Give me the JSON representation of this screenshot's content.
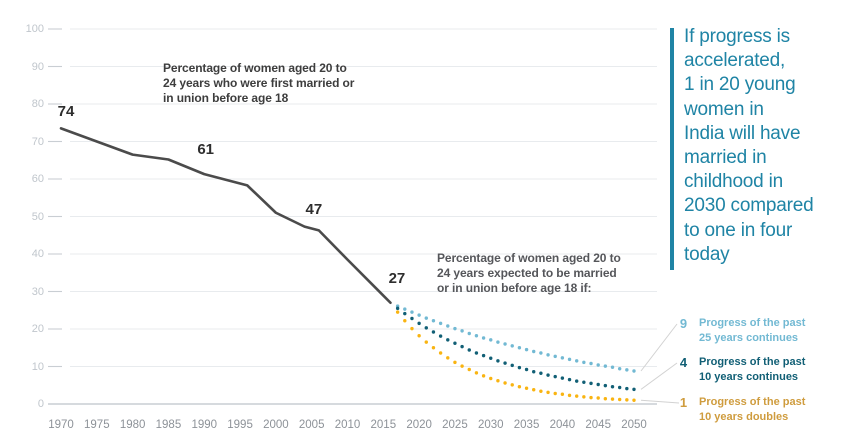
{
  "chart_data": {
    "type": "line",
    "xlim": [
      1970,
      2050
    ],
    "ylim": [
      0,
      100
    ],
    "grid": true,
    "x_ticks": [
      1970,
      1975,
      1980,
      1985,
      1990,
      1995,
      2000,
      2005,
      2010,
      2015,
      2020,
      2025,
      2030,
      2035,
      2040,
      2045,
      2050
    ],
    "y_ticks": [
      0,
      10,
      20,
      30,
      40,
      50,
      60,
      70,
      80,
      90,
      100
    ],
    "historical_series": {
      "name": "Percentage of women aged 20 to 24 years who were first married or in union before age 18",
      "style": "solid",
      "color": "#4b4b4b",
      "points": [
        [
          1970,
          73.5
        ],
        [
          1975,
          70
        ],
        [
          1980,
          66.5
        ],
        [
          1985,
          65.2
        ],
        [
          1990,
          61.3
        ],
        [
          1996,
          58.3
        ],
        [
          2000,
          51
        ],
        [
          2004,
          47.3
        ],
        [
          2006,
          46.3
        ],
        [
          2010,
          38.5
        ],
        [
          2016,
          27
        ]
      ],
      "point_labels": [
        {
          "text": "74",
          "year": 1970.7,
          "anchor_value": 75.7
        },
        {
          "text": "61",
          "year": 1990.2,
          "anchor_value": 65.6
        },
        {
          "text": "47",
          "year": 2005.3,
          "anchor_value": 49.6
        },
        {
          "text": "27",
          "year": 2016.9,
          "anchor_value": 31.2
        }
      ]
    },
    "projections": {
      "name": "Percentage of women aged 20 to 24 years expected to be married or in union before age 18 if:",
      "style": "dotted",
      "start_year": 2017,
      "end_year": 2050,
      "series": [
        {
          "name": "Progress of the past 25 years continues",
          "end_label": "9",
          "color": "#72b9d3",
          "values": [
            26.1,
            25.3,
            24.5,
            23.7,
            22.9,
            22.2,
            21.5,
            20.8,
            20.1,
            19.5,
            18.8,
            18.2,
            17.6,
            17.1,
            16.5,
            16.0,
            15.5,
            15.0,
            14.5,
            14.0,
            13.6,
            13.1,
            12.7,
            12.3,
            11.9,
            11.5,
            11.1,
            10.8,
            10.4,
            10.1,
            9.8,
            9.4,
            9.1,
            8.8
          ]
        },
        {
          "name": "Progress of the past 10 years continues",
          "end_label": "4",
          "color": "#115f75",
          "values": [
            25.5,
            24.1,
            22.8,
            21.5,
            20.3,
            19.2,
            18.1,
            17.1,
            16.2,
            15.3,
            14.4,
            13.6,
            12.9,
            12.2,
            11.5,
            10.9,
            10.3,
            9.7,
            9.2,
            8.6,
            8.2,
            7.7,
            7.3,
            6.9,
            6.5,
            6.1,
            5.8,
            5.5,
            5.2,
            4.9,
            4.6,
            4.4,
            4.1,
            3.9
          ]
        },
        {
          "name": "Progress of the past 10 years doubles",
          "end_label": "1",
          "color": "#f9b411",
          "values": [
            24.5,
            22.2,
            20.1,
            18.2,
            16.5,
            15.0,
            13.6,
            12.3,
            11.1,
            10.1,
            9.2,
            8.3,
            7.5,
            6.8,
            6.2,
            5.6,
            5.1,
            4.6,
            4.2,
            3.8,
            3.4,
            3.1,
            2.8,
            2.6,
            2.3,
            2.1,
            1.9,
            1.7,
            1.6,
            1.4,
            1.3,
            1.2,
            1.1,
            1.0
          ]
        }
      ]
    }
  },
  "annotations": {
    "historical": "Percentage of women aged 20 to\n24 years who were first married or\nin union before age 18",
    "projection": "Percentage of women aged 20 to\n24 years expected to be married\nor in union before age 18 if:"
  },
  "legend": {
    "items": [
      {
        "value": "9",
        "label": "Progress of the past\n25 years continues",
        "color": "#72b9d3"
      },
      {
        "value": "4",
        "label": "Progress of the past\n10 years continues",
        "color": "#115f75"
      },
      {
        "value": "1",
        "label": "Progress of the past\n10 years doubles",
        "color": "#cf9c3e"
      }
    ]
  },
  "callout": {
    "text": "If progress is\naccelerated,\n1 in 20 young\nwomen in\nIndia will have\nmarried in\nchildhood in\n2030 compared\nto one in four\ntoday",
    "color": "#1f84a5"
  },
  "colors": {
    "grid": "#e8ebee",
    "tick": "#c9ced3",
    "axis": "#bdc4ca",
    "y_label": "#c0c6cc",
    "x_label": "#8d9298",
    "leader_line": "#d2d2d2",
    "data_label": "#2e2e2e"
  }
}
